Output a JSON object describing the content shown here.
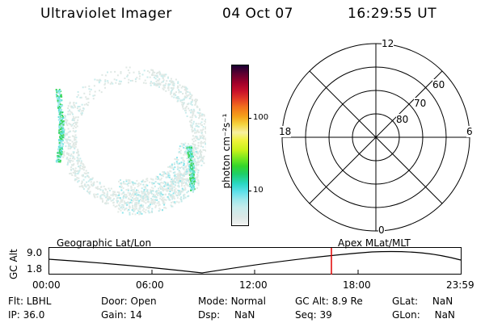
{
  "header": {
    "instrument": "Ultraviolet Imager",
    "date": "04 Oct 07",
    "time": "16:29:55 UT"
  },
  "colorbar": {
    "label": "photon cm⁻²s⁻¹",
    "ticks": [
      "100",
      "10"
    ],
    "colors": [
      "#f2f2f2",
      "#dde8e6",
      "#c7ecec",
      "#9ee8ec",
      "#5ee0ea",
      "#2ad8c4",
      "#1ecf6a",
      "#33d62a",
      "#7ae81f",
      "#c8f21a",
      "#f0f23a",
      "#f7f0a0",
      "#f5d640",
      "#f5a21a",
      "#f2701c",
      "#e23a25",
      "#c8102a",
      "#a0002a",
      "#5c0030",
      "#1a0033"
    ]
  },
  "polar": {
    "mlt_labels": {
      "top": "12",
      "left": "18",
      "right": "6",
      "bottom": "0"
    },
    "lat_labels": [
      "60",
      "70",
      "80"
    ]
  },
  "timeline": {
    "left_title": "Geographic Lat/Lon",
    "right_title": "Apex  MLat/MLT",
    "ylabel": "GC Alt",
    "ymax": "9.0",
    "ymin": "1.8",
    "xticks": [
      "00:00",
      "06:00",
      "12:00",
      "18:00",
      "23:59"
    ],
    "current_time_marker": "16:29:55"
  },
  "status": {
    "flt": {
      "label": "Flt:",
      "value": "LBHL"
    },
    "ip": {
      "label": "IP:",
      "value": "36.0"
    },
    "door": {
      "label": "Door:",
      "value": "Open"
    },
    "gain": {
      "label": "Gain:",
      "value": "14"
    },
    "mode": {
      "label": "Mode:",
      "value": "Normal"
    },
    "dsp": {
      "label": "Dsp:",
      "value": "NaN"
    },
    "gcalt": {
      "label": "GC Alt:",
      "value": "8.9 Re"
    },
    "seq": {
      "label": "Seq:",
      "value": "39"
    },
    "glat": {
      "label": "GLat:",
      "value": "NaN"
    },
    "glon": {
      "label": "GLon:",
      "value": "NaN"
    }
  }
}
